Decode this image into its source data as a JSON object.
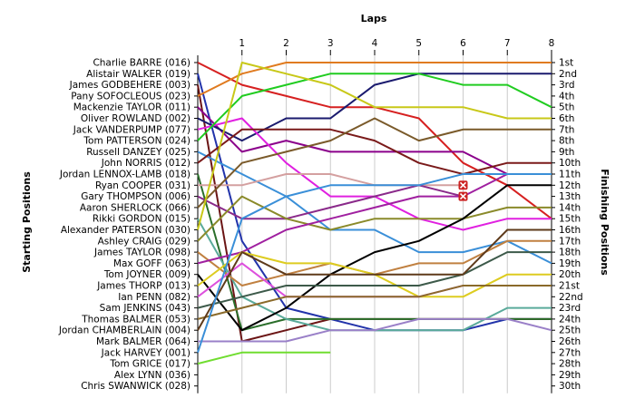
{
  "chart_data": {
    "type": "line",
    "title": "Laps",
    "ylabel_left": "Starting Positions",
    "ylabel_right": "Finishing Positions",
    "x": [
      0,
      1,
      2,
      3,
      4,
      5,
      6,
      7,
      8
    ],
    "x_tick_labels": [
      "1",
      "2",
      "3",
      "4",
      "5",
      "6",
      "7",
      "8"
    ],
    "position_count": 30,
    "finishing_labels": [
      "1st",
      "2nd",
      "3rd",
      "4th",
      "5th",
      "6th",
      "7th",
      "8th",
      "9th",
      "10th",
      "11th",
      "12th",
      "13th",
      "14th",
      "15th",
      "16th",
      "17th",
      "18th",
      "19th",
      "20th",
      "21st",
      "22nd",
      "23rd",
      "24th",
      "25th",
      "26th",
      "27th",
      "28th",
      "29th",
      "30th"
    ],
    "grid": true,
    "series": [
      {
        "name": "Charlie BARRE (016)",
        "color": "#d62020",
        "positions": [
          1,
          3,
          4,
          5,
          5,
          6,
          10,
          12,
          15
        ]
      },
      {
        "name": "Alistair WALKER (019)",
        "color": "#2233aa",
        "positions": [
          2,
          17,
          23,
          24,
          25,
          25,
          25,
          24,
          24
        ]
      },
      {
        "name": "James GODBEHERE (003)",
        "color": "#6b1515",
        "positions": [
          3,
          26,
          25,
          24,
          24,
          24,
          24,
          24,
          24
        ]
      },
      {
        "name": "Pany SOFOCLEOUS (023)",
        "color": "#e07b20",
        "positions": [
          4,
          2,
          1,
          1,
          1,
          1,
          1,
          1,
          1
        ]
      },
      {
        "name": "Mackenzie TAYLOR (011)",
        "color": "#8b008b",
        "positions": [
          5,
          9,
          8,
          9,
          9,
          9,
          9,
          11,
          11
        ]
      },
      {
        "name": "Oliver ROWLAND (002)",
        "color": "#1a1a6e",
        "positions": [
          6,
          8,
          6,
          6,
          3,
          2,
          2,
          2,
          2
        ]
      },
      {
        "name": "Jack VANDERPUMP (077)",
        "color": "#e020e0",
        "positions": [
          7,
          6,
          10,
          13,
          13,
          15,
          16,
          15,
          15
        ]
      },
      {
        "name": "Tom PATTERSON (024)",
        "color": "#20cc20",
        "positions": [
          8,
          4,
          3,
          2,
          2,
          2,
          3,
          3,
          5
        ]
      },
      {
        "name": "Russell DANZEY (025)",
        "color": "#3a8fd8",
        "positions": [
          9,
          11,
          13,
          16,
          16,
          18,
          18,
          17,
          19
        ]
      },
      {
        "name": "John NORRIS (012)",
        "color": "#7a1a1a",
        "positions": [
          10,
          7,
          7,
          7,
          8,
          10,
          11,
          10,
          10
        ]
      },
      {
        "name": "Jordan LENNOX-LAMB (018)",
        "color": "#2a6e2a",
        "positions": [
          11,
          25,
          24,
          24,
          24,
          24,
          24,
          24,
          24
        ]
      },
      {
        "name": "Ryan COOPER (031)",
        "color": "#d4a0a0",
        "positions": [
          12,
          12,
          11,
          11,
          12,
          12,
          12,
          null,
          null
        ]
      },
      {
        "name": "Gary THOMPSON (006)",
        "color": "#8a2a8a",
        "positions": [
          13,
          15,
          15,
          14,
          13,
          12,
          13,
          null,
          null
        ]
      },
      {
        "name": "Aaron SHERLOCK (066)",
        "color": "#7a5a2a",
        "positions": [
          14,
          10,
          9,
          8,
          6,
          8,
          7,
          7,
          7
        ]
      },
      {
        "name": "Rikki GORDON (015)",
        "color": "#5aaa9a",
        "positions": [
          15,
          22,
          24,
          25,
          25,
          25,
          25,
          23,
          23
        ]
      },
      {
        "name": "Alexander PATERSON (030)",
        "color": "#c8c818",
        "positions": [
          16,
          1,
          2,
          3,
          5,
          5,
          5,
          6,
          6
        ]
      },
      {
        "name": "Ashley CRAIG (029)",
        "color": "#8a8a2a",
        "positions": [
          17,
          13,
          15,
          16,
          15,
          15,
          15,
          14,
          14
        ]
      },
      {
        "name": "James TAYLOR (098)",
        "color": "#c08040",
        "positions": [
          18,
          21,
          20,
          19,
          20,
          19,
          19,
          17,
          17
        ]
      },
      {
        "name": "Max GOFF (063)",
        "color": "#a020a0",
        "positions": [
          19,
          18,
          16,
          15,
          14,
          13,
          13,
          11,
          11
        ]
      },
      {
        "name": "Tom JOYNER (009)",
        "color": "#000000",
        "positions": [
          20,
          25,
          23,
          20,
          18,
          17,
          15,
          12,
          12
        ]
      },
      {
        "name": "James THORP (013)",
        "color": "#ddcc20",
        "positions": [
          21,
          18,
          19,
          19,
          20,
          22,
          22,
          20,
          20
        ]
      },
      {
        "name": "Ian PENN (082)",
        "color": "#dd50dd",
        "positions": [
          22,
          19,
          22,
          22,
          22,
          22,
          21,
          21,
          21
        ]
      },
      {
        "name": "Sam JENKINS (043)",
        "color": "#3d5a4a",
        "positions": [
          23,
          22,
          21,
          21,
          21,
          21,
          20,
          18,
          18
        ]
      },
      {
        "name": "Thomas BALMER (053)",
        "color": "#8a6a2a",
        "positions": [
          24,
          23,
          22,
          22,
          22,
          22,
          21,
          21,
          21
        ]
      },
      {
        "name": "Jordan CHAMBERLAIN (004)",
        "color": "#5e3a1a",
        "positions": [
          25,
          18,
          20,
          20,
          20,
          20,
          20,
          16,
          16
        ]
      },
      {
        "name": "Mark BALMER (064)",
        "color": "#9a80c8",
        "positions": [
          26,
          26,
          26,
          25,
          25,
          24,
          24,
          24,
          25
        ]
      },
      {
        "name": "Jack HARVEY (001)",
        "color": "#3a8fd8",
        "positions": [
          27,
          15,
          13,
          12,
          12,
          12,
          11,
          11,
          11
        ]
      },
      {
        "name": "Tom GRICE (017)",
        "color": "#70dd30",
        "positions": [
          28,
          27,
          27,
          27,
          null,
          null,
          null,
          null,
          null
        ]
      },
      {
        "name": "Alex LYNN (036)",
        "color": "#888888",
        "positions": [
          29,
          null,
          null,
          null,
          null,
          null,
          null,
          null,
          null
        ]
      },
      {
        "name": "Chris SWANWICK (028)",
        "color": "#888888",
        "positions": [
          30,
          null,
          null,
          null,
          null,
          null,
          null,
          null,
          null
        ]
      }
    ],
    "retirements": [
      {
        "driver": "Ryan COOPER (031)",
        "lap": 6,
        "position": 12
      },
      {
        "driver": "Gary THOMPSON (006)",
        "lap": 6,
        "position": 13
      }
    ]
  }
}
